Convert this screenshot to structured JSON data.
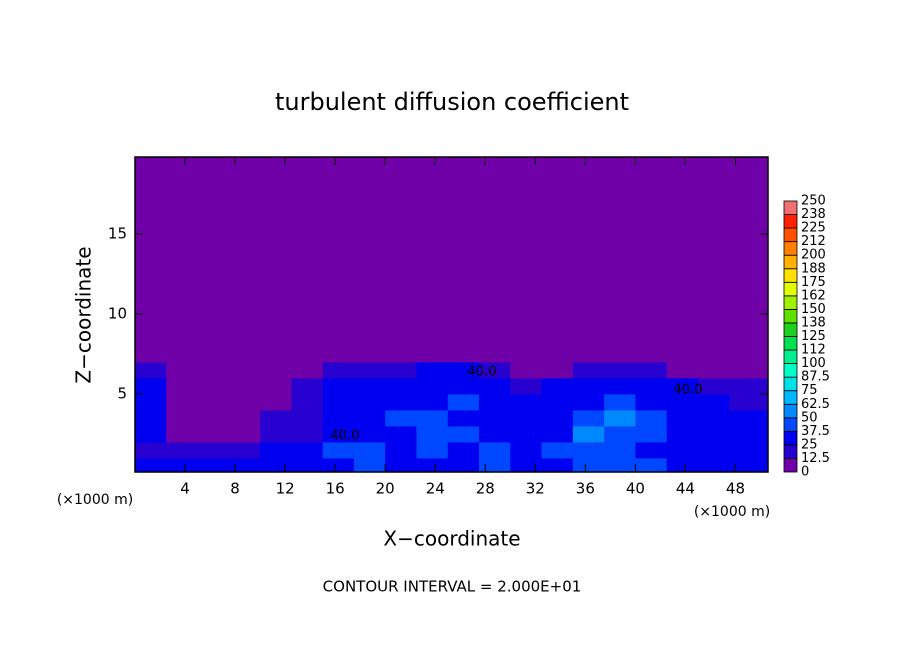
{
  "chart_data": {
    "type": "contour",
    "title": "turbulent diffusion coefficient",
    "x_label": "X−coordinate",
    "y_label": "Z−coordinate",
    "x_unit_labels": [
      "(×1000 m)",
      "(×1000 m)"
    ],
    "footnote": "CONTOUR INTERVAL = 2.000E+01",
    "contour_labels": [
      "40.0",
      "40.0",
      "40.0"
    ],
    "xlim": [
      0,
      50.6
    ],
    "ylim": [
      0.12,
      19.8
    ],
    "xticks": [
      4,
      8,
      12,
      16,
      20,
      24,
      28,
      32,
      36,
      40,
      44,
      48
    ],
    "yticks": [
      5,
      10,
      15
    ],
    "x_edges": [
      0,
      2.5,
      5,
      7.5,
      10,
      12.5,
      15,
      17.5,
      20,
      22.5,
      25,
      27.5,
      30,
      32.5,
      35,
      37.5,
      40,
      42.5,
      45,
      47.5,
      50.6
    ],
    "z_edges": [
      0,
      1,
      2,
      3,
      4,
      5,
      6,
      7,
      8
    ],
    "z": [
      [
        30,
        25,
        25,
        25,
        25,
        30,
        35,
        40,
        30,
        35,
        30,
        40,
        35,
        30,
        40,
        45,
        40,
        35,
        30,
        30
      ],
      [
        20,
        15,
        20,
        15,
        25,
        30,
        45,
        40,
        30,
        40,
        35,
        45,
        30,
        40,
        45,
        40,
        35,
        30,
        30,
        25
      ],
      [
        30,
        10,
        10,
        10,
        20,
        20,
        35,
        30,
        25,
        45,
        40,
        35,
        30,
        35,
        50,
        45,
        40,
        35,
        30,
        25
      ],
      [
        35,
        5,
        5,
        5,
        15,
        20,
        30,
        35,
        40,
        40,
        35,
        30,
        25,
        35,
        45,
        50,
        40,
        35,
        30,
        25
      ],
      [
        30,
        5,
        5,
        5,
        5,
        20,
        30,
        35,
        30,
        35,
        40,
        30,
        25,
        25,
        30,
        40,
        35,
        30,
        25,
        20
      ],
      [
        25,
        5,
        5,
        5,
        5,
        15,
        25,
        30,
        30,
        30,
        35,
        30,
        15,
        25,
        25,
        30,
        30,
        25,
        20,
        15
      ],
      [
        15,
        0,
        0,
        0,
        0,
        5,
        20,
        20,
        20,
        25,
        25,
        20,
        10,
        10,
        15,
        20,
        20,
        10,
        5,
        5
      ],
      [
        0,
        0,
        0,
        0,
        0,
        0,
        0,
        5,
        5,
        10,
        5,
        5,
        0,
        0,
        0,
        0,
        0,
        0,
        0,
        0
      ]
    ],
    "levels": [
      0,
      12.5,
      25,
      37.5,
      50,
      62.5,
      75,
      87.5,
      100,
      112,
      125,
      138,
      150,
      162,
      175,
      188,
      200,
      212,
      225,
      238,
      250
    ],
    "colors": [
      "#7000a8",
      "#2800d0",
      "#0000f0",
      "#0048ff",
      "#0088ff",
      "#00b8ff",
      "#00e0e8",
      "#00ffc8",
      "#00f090",
      "#00e050",
      "#20d020",
      "#60e000",
      "#a0f000",
      "#e0ff00",
      "#ffe000",
      "#ffb000",
      "#ff8000",
      "#ff5000",
      "#ff2000",
      "#f07070"
    ]
  }
}
